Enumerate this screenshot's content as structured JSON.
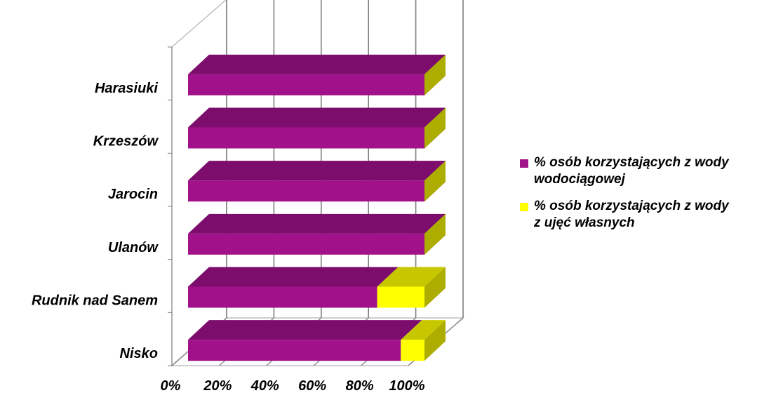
{
  "chart_data": {
    "type": "bar",
    "orientation": "horizontal",
    "stacked": "percent",
    "three_d": true,
    "categories": [
      "Harasiuki",
      "Krzeszów",
      "Jarocin",
      "Ulanów",
      "Rudnik nad Sanem",
      "Nisko"
    ],
    "series": [
      {
        "name": "% osób korzystających z wody wodociągowej",
        "color": "#A0118A",
        "values": [
          100,
          100,
          100,
          100,
          80,
          90
        ]
      },
      {
        "name": "% osób korzystających z wody z ujęć własnych",
        "color": "#FFFF00",
        "values": [
          0,
          0,
          0,
          0,
          20,
          10
        ]
      }
    ],
    "xticks": [
      "0%",
      "20%",
      "40%",
      "60%",
      "80%",
      "100%"
    ],
    "xlim": [
      0,
      100
    ],
    "grid": true,
    "legend_position": "right"
  },
  "legend": {
    "items": [
      {
        "line1": "% osób korzystających z wody",
        "line2": "wodociągowej",
        "color": "#A0118A"
      },
      {
        "line1": "% osób korzystających z wody",
        "line2": "z ujęć własnych",
        "color": "#FFFF00"
      }
    ]
  }
}
